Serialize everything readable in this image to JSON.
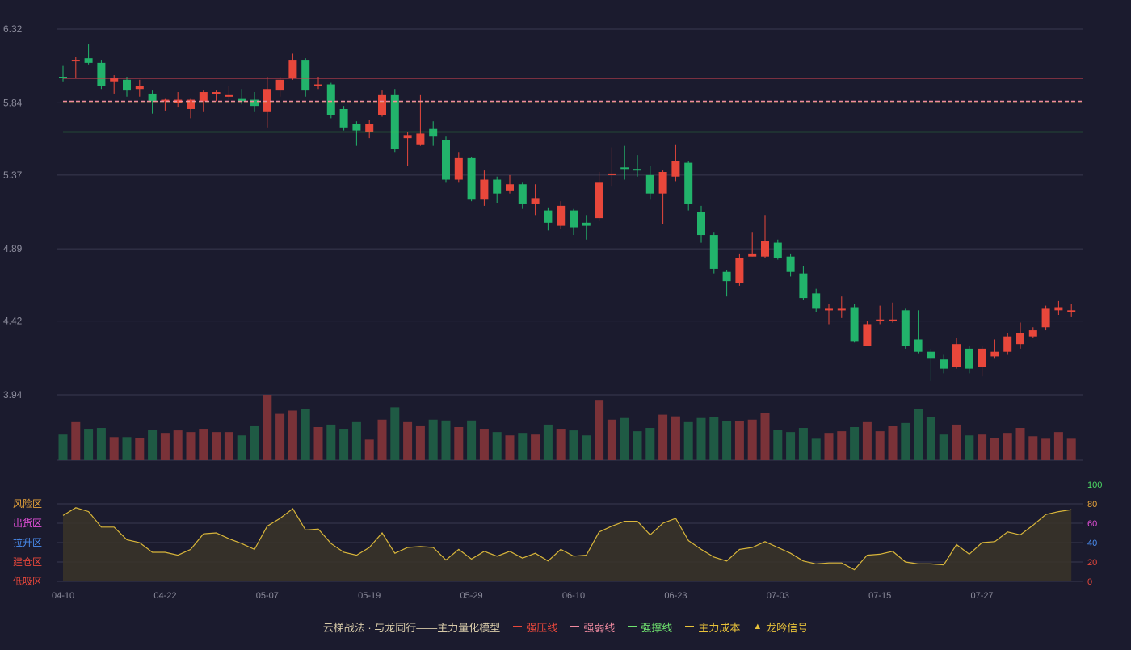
{
  "colors": {
    "background": "#1b1b2e",
    "up": "#e8473b",
    "down": "#22b36b",
    "up_volume": "#7a3238",
    "down_volume": "#1f5a44",
    "grid": "#3a3a50",
    "axis_text": "#8c8c9c",
    "pressure_line": "#d94452",
    "support_line": "#3ec94e",
    "cost_line": "#e8c23a",
    "weak_line": "#f08aa0",
    "indicator_line": "#d9b63a",
    "indicator_fill": "#3a3428"
  },
  "legend": [
    {
      "label": "云梯战法 · 与龙同行——主力量化模型",
      "kind": "text",
      "color": "#d6c9a8"
    },
    {
      "label": "强压线",
      "kind": "solid",
      "color": "#e8473b"
    },
    {
      "label": "强弱线",
      "kind": "dashed",
      "color": "#f08aa0"
    },
    {
      "label": "强撑线",
      "kind": "solid",
      "color": "#6fe36f"
    },
    {
      "label": "主力成本",
      "kind": "dashed",
      "color": "#e8c23a"
    },
    {
      "label": "龙吟信号",
      "kind": "triangle",
      "color": "#e8c23a"
    }
  ],
  "chart_data": [
    {
      "type": "candlestick",
      "title": "",
      "yticks": [
        "6.32",
        "5.84",
        "5.37",
        "4.89",
        "4.42",
        "3.94"
      ],
      "ylim": [
        3.94,
        6.32
      ],
      "xticks": [
        "04-10",
        "04-22",
        "05-07",
        "05-19",
        "05-29",
        "06-10",
        "06-23",
        "07-03",
        "07-15",
        "07-27"
      ],
      "xtick_index": [
        0,
        8,
        16,
        24,
        32,
        40,
        48,
        56,
        64,
        72
      ],
      "reference_lines": [
        {
          "name": "强压线",
          "value": 6.0
        },
        {
          "name": "强弱线",
          "value": 5.85
        },
        {
          "name": "主力成本",
          "value": 5.84
        },
        {
          "name": "强撑线",
          "value": 5.65
        }
      ],
      "ohlc": [
        [
          6.01,
          6.0,
          6.08,
          5.98
        ],
        [
          6.11,
          6.12,
          6.14,
          6.0
        ],
        [
          6.13,
          6.1,
          6.22,
          6.09
        ],
        [
          6.1,
          5.95,
          6.12,
          5.93
        ],
        [
          5.98,
          6.0,
          6.02,
          5.9
        ],
        [
          5.99,
          5.92,
          6.01,
          5.88
        ],
        [
          5.93,
          5.95,
          5.99,
          5.88
        ],
        [
          5.9,
          5.85,
          5.92,
          5.77
        ],
        [
          5.85,
          5.86,
          5.87,
          5.79
        ],
        [
          5.84,
          5.86,
          5.91,
          5.81
        ],
        [
          5.8,
          5.86,
          5.87,
          5.74
        ],
        [
          5.85,
          5.91,
          5.92,
          5.78
        ],
        [
          5.9,
          5.91,
          5.92,
          5.85
        ],
        [
          5.88,
          5.89,
          5.95,
          5.86
        ],
        [
          5.87,
          5.85,
          5.93,
          5.83
        ],
        [
          5.86,
          5.82,
          5.91,
          5.78
        ],
        [
          5.78,
          5.93,
          6.01,
          5.68
        ],
        [
          5.92,
          5.99,
          6.01,
          5.88
        ],
        [
          6.0,
          6.12,
          6.16,
          5.99
        ],
        [
          6.12,
          5.92,
          6.13,
          5.88
        ],
        [
          5.95,
          5.96,
          6.01,
          5.93
        ],
        [
          5.96,
          5.76,
          5.97,
          5.74
        ],
        [
          5.8,
          5.68,
          5.82,
          5.66
        ],
        [
          5.7,
          5.66,
          5.72,
          5.56
        ],
        [
          5.65,
          5.7,
          5.73,
          5.61
        ],
        [
          5.76,
          5.89,
          5.92,
          5.75
        ],
        [
          5.89,
          5.54,
          5.93,
          5.52
        ],
        [
          5.61,
          5.63,
          5.65,
          5.43
        ],
        [
          5.57,
          5.64,
          5.89,
          5.56
        ],
        [
          5.67,
          5.62,
          5.72,
          5.56
        ],
        [
          5.6,
          5.34,
          5.62,
          5.32
        ],
        [
          5.34,
          5.48,
          5.52,
          5.32
        ],
        [
          5.48,
          5.21,
          5.49,
          5.2
        ],
        [
          5.21,
          5.34,
          5.4,
          5.17
        ],
        [
          5.34,
          5.25,
          5.36,
          5.19
        ],
        [
          5.27,
          5.31,
          5.37,
          5.25
        ],
        [
          5.31,
          5.18,
          5.32,
          5.15
        ],
        [
          5.18,
          5.22,
          5.31,
          5.11
        ],
        [
          5.14,
          5.06,
          5.16,
          5.01
        ],
        [
          5.04,
          5.17,
          5.2,
          5.02
        ],
        [
          5.14,
          5.03,
          5.15,
          4.98
        ],
        [
          5.06,
          5.04,
          5.11,
          4.95
        ],
        [
          5.09,
          5.32,
          5.39,
          5.07
        ],
        [
          5.38,
          5.38,
          5.55,
          5.3
        ],
        [
          5.42,
          5.41,
          5.56,
          5.34
        ],
        [
          5.41,
          5.4,
          5.5,
          5.36
        ],
        [
          5.37,
          5.25,
          5.43,
          5.21
        ],
        [
          5.25,
          5.39,
          5.4,
          5.05
        ],
        [
          5.36,
          5.46,
          5.57,
          5.33
        ],
        [
          5.45,
          5.18,
          5.46,
          5.14
        ],
        [
          5.13,
          4.98,
          5.17,
          4.93
        ],
        [
          4.98,
          4.76,
          5.0,
          4.73
        ],
        [
          4.74,
          4.68,
          4.75,
          4.58
        ],
        [
          4.67,
          4.83,
          4.86,
          4.65
        ],
        [
          4.84,
          4.86,
          5.0,
          4.84
        ],
        [
          4.84,
          4.94,
          5.11,
          4.83
        ],
        [
          4.93,
          4.83,
          4.95,
          4.82
        ],
        [
          4.84,
          4.74,
          4.86,
          4.71
        ],
        [
          4.73,
          4.57,
          4.78,
          4.56
        ],
        [
          4.6,
          4.5,
          4.63,
          4.48
        ],
        [
          4.5,
          4.5,
          4.53,
          4.4
        ],
        [
          4.5,
          4.5,
          4.58,
          4.44
        ],
        [
          4.51,
          4.29,
          4.53,
          4.28
        ],
        [
          4.26,
          4.4,
          4.42,
          4.26
        ],
        [
          4.42,
          4.43,
          4.52,
          4.4
        ],
        [
          4.43,
          4.43,
          4.54,
          4.41
        ],
        [
          4.49,
          4.26,
          4.5,
          4.24
        ],
        [
          4.3,
          4.22,
          4.49,
          4.21
        ],
        [
          4.22,
          4.18,
          4.24,
          4.03
        ],
        [
          4.17,
          4.11,
          4.2,
          4.08
        ],
        [
          4.12,
          4.27,
          4.31,
          4.11
        ],
        [
          4.24,
          4.11,
          4.26,
          4.08
        ],
        [
          4.12,
          4.24,
          4.26,
          4.06
        ],
        [
          4.19,
          4.22,
          4.3,
          4.18
        ],
        [
          4.22,
          4.32,
          4.34,
          4.2
        ],
        [
          4.27,
          4.34,
          4.41,
          4.24
        ],
        [
          4.32,
          4.36,
          4.38,
          4.31
        ],
        [
          4.38,
          4.5,
          4.52,
          4.36
        ],
        [
          4.49,
          4.51,
          4.55,
          4.46
        ],
        [
          4.49,
          4.49,
          4.53,
          4.45
        ]
      ],
      "volume": [
        31,
        46,
        38,
        39,
        28,
        28,
        27,
        37,
        33,
        36,
        34,
        38,
        34,
        34,
        30,
        42,
        79,
        56,
        60,
        62,
        40,
        43,
        38,
        46,
        25,
        49,
        64,
        46,
        42,
        49,
        48,
        40,
        48,
        38,
        34,
        30,
        33,
        31,
        43,
        38,
        36,
        30,
        72,
        49,
        51,
        35,
        39,
        55,
        53,
        46,
        51,
        52,
        47,
        47,
        49,
        57,
        37,
        34,
        39,
        26,
        33,
        35,
        40,
        46,
        35,
        41,
        45,
        62,
        52,
        31,
        43,
        30,
        31,
        27,
        33,
        39,
        29,
        26,
        34,
        26
      ]
    },
    {
      "type": "line",
      "title": "",
      "ylim": [
        0,
        100
      ],
      "yticks": [
        "100",
        "80",
        "60",
        "40",
        "20",
        "0"
      ],
      "zones": [
        "风险区",
        "出货区",
        "拉升区",
        "建仓区",
        "低吸区"
      ],
      "values": [
        68,
        76,
        72,
        56,
        56,
        43,
        40,
        30,
        30,
        27,
        33,
        49,
        50,
        44,
        39,
        33,
        57,
        65,
        75,
        53,
        54,
        39,
        30,
        27,
        35,
        50,
        29,
        35,
        36,
        35,
        22,
        33,
        23,
        31,
        26,
        31,
        24,
        29,
        21,
        33,
        26,
        27,
        51,
        57,
        62,
        62,
        48,
        60,
        65,
        42,
        33,
        25,
        21,
        33,
        35,
        41,
        35,
        29,
        21,
        18,
        19,
        19,
        12,
        27,
        28,
        31,
        20,
        18,
        18,
        17,
        38,
        28,
        40,
        41,
        51,
        48,
        58,
        69,
        72,
        74
      ]
    }
  ]
}
